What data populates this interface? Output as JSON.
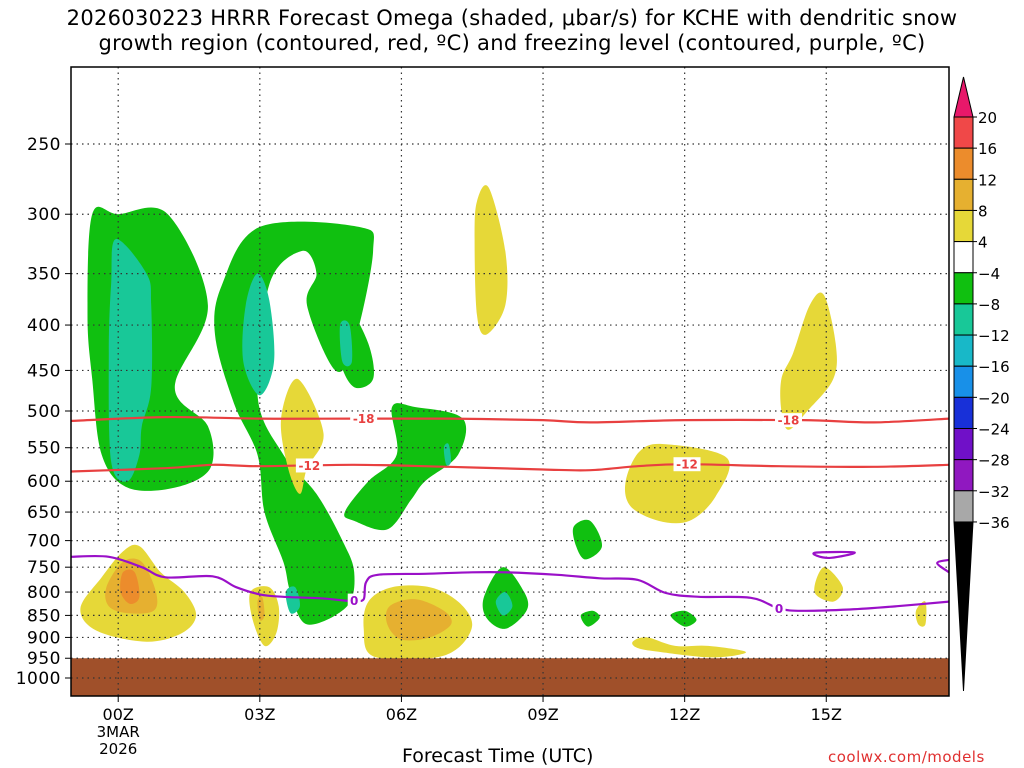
{
  "title": {
    "line1": "2026030223 HRRR Forecast Omega (shaded, μbar/s) for KCHE with dendritic snow",
    "line2": "growth region (contoured, red, ºC) and freezing level (contoured, purple, ºC)"
  },
  "footer": {
    "xaxis_title": "Forecast Time (UTC)",
    "credit": "coolwx.com/models"
  },
  "chart_data": {
    "type": "contour",
    "x_unit": "hours since 2026-03-02 23Z",
    "x_ticks": [
      {
        "hour": 1,
        "label": "00Z",
        "sub": [
          "3MAR",
          "2026"
        ]
      },
      {
        "hour": 4,
        "label": "03Z"
      },
      {
        "hour": 7,
        "label": "06Z"
      },
      {
        "hour": 10,
        "label": "09Z"
      },
      {
        "hour": 13,
        "label": "12Z"
      },
      {
        "hour": 16,
        "label": "15Z"
      }
    ],
    "xlim": [
      0.0,
      18.6
    ],
    "y_unit": "hPa",
    "y_scale": "log",
    "ylim": [
      1050,
      200
    ],
    "y_ticks": [
      250,
      300,
      350,
      400,
      450,
      500,
      550,
      600,
      650,
      700,
      750,
      800,
      850,
      900,
      950,
      1000
    ],
    "gridlines": "dotted",
    "ground_below_hPa": 950,
    "ground_color": "#a0502a",
    "colorbar": {
      "levels": [
        20,
        16,
        12,
        8,
        4,
        -4,
        -8,
        -12,
        -16,
        -20,
        -24,
        -28,
        -32,
        -36
      ],
      "colors": [
        "#e8186a",
        "#f04848",
        "#ec8c2c",
        "#e6b030",
        "#e6d838",
        "#ffffff",
        "#10c010",
        "#18c898",
        "#18b8c8",
        "#1890e8",
        "#1830d8",
        "#7010c8",
        "#9018c0",
        "#a8a8a8",
        "#000000"
      ]
    },
    "shaded_regions": [
      {
        "value": -4,
        "points": [
          [
            0.45,
            300
          ],
          [
            1.0,
            300
          ],
          [
            2.05,
            300
          ],
          [
            2.9,
            380
          ],
          [
            2.2,
            470
          ],
          [
            2.9,
            520
          ],
          [
            2.95,
            580
          ],
          [
            2.2,
            610
          ],
          [
            1.2,
            610
          ],
          [
            0.65,
            560
          ],
          [
            0.45,
            460
          ],
          [
            0.35,
            390
          ]
        ]
      },
      {
        "value": -8,
        "points": [
          [
            0.95,
            320
          ],
          [
            1.6,
            350
          ],
          [
            1.7,
            380
          ],
          [
            1.7,
            470
          ],
          [
            1.5,
            520
          ],
          [
            1.45,
            560
          ],
          [
            1.2,
            600
          ],
          [
            0.85,
            570
          ],
          [
            0.8,
            430
          ],
          [
            0.85,
            360
          ]
        ]
      },
      {
        "value": -4,
        "points": [
          [
            3.2,
            360
          ],
          [
            4.0,
            310
          ],
          [
            6.1,
            310
          ],
          [
            6.4,
            330
          ],
          [
            6.0,
            420
          ],
          [
            5.6,
            450
          ],
          [
            5.0,
            380
          ],
          [
            5.2,
            350
          ],
          [
            4.9,
            330
          ],
          [
            4.2,
            360
          ],
          [
            3.95,
            480
          ],
          [
            4.5,
            560
          ],
          [
            5.2,
            620
          ],
          [
            5.75,
            700
          ],
          [
            6.0,
            760
          ],
          [
            5.85,
            830
          ],
          [
            5.0,
            870
          ],
          [
            4.65,
            800
          ],
          [
            4.5,
            740
          ],
          [
            4.1,
            650
          ],
          [
            3.95,
            560
          ],
          [
            3.45,
            490
          ],
          [
            3.05,
            410
          ]
        ]
      },
      {
        "value": -8,
        "points": [
          [
            3.7,
            380
          ],
          [
            3.95,
            350
          ],
          [
            4.2,
            375
          ],
          [
            4.3,
            440
          ],
          [
            4.0,
            480
          ],
          [
            3.65,
            440
          ]
        ]
      },
      {
        "value": -8,
        "points": [
          [
            4.55,
            800
          ],
          [
            4.75,
            790
          ],
          [
            4.85,
            830
          ],
          [
            4.65,
            845
          ]
        ]
      },
      {
        "value": -4,
        "points": [
          [
            5.55,
            390
          ],
          [
            5.85,
            380
          ],
          [
            6.3,
            420
          ],
          [
            6.4,
            460
          ],
          [
            6.0,
            470
          ],
          [
            5.7,
            440
          ]
        ]
      },
      {
        "value": -8,
        "points": [
          [
            5.7,
            400
          ],
          [
            5.9,
            400
          ],
          [
            5.95,
            440
          ],
          [
            5.75,
            440
          ]
        ]
      },
      {
        "value": 4,
        "points": [
          [
            4.45,
            510
          ],
          [
            4.8,
            460
          ],
          [
            5.35,
            530
          ],
          [
            5.0,
            580
          ],
          [
            4.85,
            620
          ],
          [
            4.6,
            580
          ]
        ]
      },
      {
        "value": -4,
        "points": [
          [
            6.8,
            495
          ],
          [
            7.3,
            495
          ],
          [
            8.3,
            510
          ],
          [
            8.2,
            560
          ],
          [
            7.5,
            600
          ],
          [
            7.2,
            630
          ],
          [
            6.7,
            680
          ],
          [
            6.0,
            665
          ],
          [
            5.8,
            650
          ],
          [
            6.3,
            600
          ],
          [
            6.9,
            560
          ]
        ]
      },
      {
        "value": -8,
        "points": [
          [
            7.9,
            550
          ],
          [
            8.0,
            545
          ],
          [
            8.05,
            570
          ],
          [
            7.95,
            575
          ]
        ]
      },
      {
        "value": 4,
        "points": [
          [
            8.6,
            290
          ],
          [
            8.85,
            280
          ],
          [
            9.2,
            330
          ],
          [
            9.2,
            380
          ],
          [
            8.8,
            410
          ],
          [
            8.6,
            390
          ],
          [
            8.55,
            320
          ]
        ]
      },
      {
        "value": 4,
        "points": [
          [
            0.2,
            835
          ],
          [
            0.65,
            770
          ],
          [
            1.1,
            720
          ],
          [
            1.45,
            710
          ],
          [
            1.9,
            760
          ],
          [
            2.4,
            800
          ],
          [
            2.65,
            850
          ],
          [
            2.35,
            890
          ],
          [
            1.6,
            910
          ],
          [
            0.55,
            885
          ]
        ]
      },
      {
        "value": 8,
        "points": [
          [
            0.75,
            790
          ],
          [
            1.1,
            740
          ],
          [
            1.5,
            740
          ],
          [
            1.8,
            800
          ],
          [
            1.75,
            840
          ],
          [
            1.2,
            845
          ],
          [
            0.8,
            830
          ]
        ]
      },
      {
        "value": 12,
        "points": [
          [
            1.1,
            760
          ],
          [
            1.35,
            760
          ],
          [
            1.45,
            810
          ],
          [
            1.25,
            825
          ],
          [
            1.05,
            800
          ]
        ]
      },
      {
        "value": 4,
        "points": [
          [
            3.8,
            800
          ],
          [
            4.2,
            790
          ],
          [
            4.4,
            830
          ],
          [
            4.35,
            890
          ],
          [
            4.1,
            920
          ],
          [
            3.85,
            860
          ]
        ]
      },
      {
        "value": 8,
        "points": [
          [
            3.95,
            820
          ],
          [
            4.05,
            810
          ],
          [
            4.1,
            850
          ],
          [
            4.0,
            860
          ]
        ]
      },
      {
        "value": 4,
        "points": [
          [
            6.3,
            820
          ],
          [
            6.8,
            790
          ],
          [
            7.6,
            790
          ],
          [
            8.2,
            820
          ],
          [
            8.5,
            870
          ],
          [
            8.2,
            925
          ],
          [
            7.6,
            950
          ],
          [
            6.4,
            945
          ],
          [
            6.2,
            880
          ]
        ]
      },
      {
        "value": 8,
        "points": [
          [
            6.75,
            830
          ],
          [
            7.3,
            815
          ],
          [
            7.9,
            840
          ],
          [
            8.05,
            870
          ],
          [
            7.6,
            900
          ],
          [
            7.0,
            905
          ],
          [
            6.7,
            870
          ]
        ]
      },
      {
        "value": -4,
        "points": [
          [
            8.75,
            810
          ],
          [
            9.15,
            750
          ],
          [
            9.6,
            800
          ],
          [
            9.65,
            840
          ],
          [
            9.2,
            880
          ],
          [
            8.8,
            855
          ]
        ]
      },
      {
        "value": -8,
        "points": [
          [
            9.0,
            820
          ],
          [
            9.2,
            800
          ],
          [
            9.35,
            830
          ],
          [
            9.15,
            850
          ]
        ]
      },
      {
        "value": -4,
        "points": [
          [
            10.65,
            675
          ],
          [
            11.0,
            665
          ],
          [
            11.25,
            710
          ],
          [
            10.9,
            735
          ],
          [
            10.7,
            710
          ]
        ]
      },
      {
        "value": -4,
        "points": [
          [
            10.8,
            850
          ],
          [
            11.05,
            840
          ],
          [
            11.2,
            855
          ],
          [
            10.95,
            875
          ]
        ]
      },
      {
        "value": 4,
        "points": [
          [
            11.75,
            600
          ],
          [
            12.05,
            555
          ],
          [
            12.6,
            545
          ],
          [
            13.9,
            565
          ],
          [
            13.65,
            625
          ],
          [
            13.1,
            665
          ],
          [
            12.45,
            665
          ],
          [
            11.85,
            640
          ]
        ]
      },
      {
        "value": -4,
        "points": [
          [
            12.7,
            850
          ],
          [
            13.0,
            840
          ],
          [
            13.25,
            860
          ],
          [
            13.0,
            875
          ]
        ]
      },
      {
        "value": 4,
        "points": [
          [
            11.9,
            910
          ],
          [
            12.2,
            900
          ],
          [
            12.8,
            920
          ],
          [
            13.5,
            920
          ],
          [
            14.3,
            935
          ],
          [
            13.6,
            948
          ],
          [
            12.5,
            935
          ],
          [
            12.0,
            925
          ]
        ]
      },
      {
        "value": 4,
        "points": [
          [
            15.05,
            460
          ],
          [
            15.3,
            430
          ],
          [
            15.65,
            380
          ],
          [
            15.95,
            370
          ],
          [
            16.2,
            420
          ],
          [
            16.15,
            460
          ],
          [
            15.6,
            500
          ],
          [
            15.2,
            525
          ],
          [
            15.05,
            500
          ]
        ]
      },
      {
        "value": 4,
        "points": [
          [
            15.75,
            800
          ],
          [
            15.95,
            750
          ],
          [
            16.35,
            790
          ],
          [
            16.15,
            820
          ]
        ]
      },
      {
        "value": 4,
        "points": [
          [
            17.9,
            840
          ],
          [
            18.1,
            820
          ],
          [
            18.1,
            870
          ],
          [
            17.95,
            870
          ]
        ]
      }
    ],
    "contours": [
      {
        "name": "-18",
        "color": "#e84040",
        "label_at_hours": [
          6.2,
          15.2
        ],
        "points": [
          [
            0.0,
            513
          ],
          [
            2.0,
            508
          ],
          [
            4.0,
            510
          ],
          [
            6.0,
            510
          ],
          [
            8.0,
            510
          ],
          [
            10.0,
            512
          ],
          [
            11.0,
            515
          ],
          [
            13.0,
            512
          ],
          [
            15.5,
            512
          ],
          [
            17.0,
            515
          ],
          [
            18.6,
            510
          ]
        ]
      },
      {
        "name": "-12",
        "color": "#e84040",
        "label_at_hours": [
          5.05,
          13.05
        ],
        "points": [
          [
            0.0,
            585
          ],
          [
            2.0,
            580
          ],
          [
            3.0,
            575
          ],
          [
            4.0,
            577
          ],
          [
            6.0,
            575
          ],
          [
            8.0,
            578
          ],
          [
            10.0,
            582
          ],
          [
            11.0,
            583
          ],
          [
            12.0,
            577
          ],
          [
            13.0,
            574
          ],
          [
            15.0,
            577
          ],
          [
            17.0,
            578
          ],
          [
            18.6,
            575
          ]
        ]
      },
      {
        "name": "0",
        "color": "#9a10c8",
        "label_at_hours": [
          6.0,
          15.0
        ],
        "points": [
          [
            0.0,
            730
          ],
          [
            0.8,
            730
          ],
          [
            1.5,
            750
          ],
          [
            2.0,
            770
          ],
          [
            3.0,
            768
          ],
          [
            3.5,
            790
          ],
          [
            4.0,
            805
          ],
          [
            4.5,
            810
          ],
          [
            5.3,
            813
          ],
          [
            5.8,
            818
          ],
          [
            6.0,
            818
          ],
          [
            6.2,
            815
          ],
          [
            6.25,
            780
          ],
          [
            6.5,
            765
          ],
          [
            7.5,
            763
          ],
          [
            8.5,
            760
          ],
          [
            9.2,
            760
          ],
          [
            10.3,
            765
          ],
          [
            11.2,
            772
          ],
          [
            12.0,
            775
          ],
          [
            12.6,
            802
          ],
          [
            13.3,
            810
          ],
          [
            14.4,
            812
          ],
          [
            15.0,
            835
          ],
          [
            15.5,
            840
          ],
          [
            16.5,
            837
          ],
          [
            17.5,
            830
          ],
          [
            18.6,
            820
          ]
        ]
      },
      {
        "name": "0",
        "color": "#9a10c8",
        "label_at_hours": [],
        "points": [
          [
            15.8,
            722
          ],
          [
            16.6,
            722
          ],
          [
            16.1,
            732
          ],
          [
            15.8,
            728
          ]
        ]
      },
      {
        "name": "0",
        "color": "#9a10c8",
        "label_at_hours": [],
        "points": [
          [
            18.6,
            736
          ],
          [
            18.35,
            742
          ],
          [
            18.6,
            760
          ]
        ]
      }
    ]
  }
}
